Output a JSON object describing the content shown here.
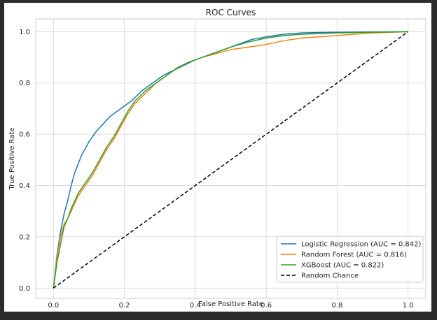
{
  "chart_data": {
    "type": "line",
    "title": "ROC Curves",
    "xlabel": "False Positive Rate",
    "ylabel": "True Positive Rate",
    "xlim": [
      -0.05,
      1.05
    ],
    "ylim": [
      -0.04,
      1.05
    ],
    "xticks": [
      0.0,
      0.2,
      0.4,
      0.6,
      0.8,
      1.0
    ],
    "yticks": [
      0.0,
      0.2,
      0.4,
      0.6,
      0.8,
      1.0
    ],
    "xtick_labels": [
      "0.0",
      "0.2",
      "0.4",
      "0.6",
      "0.8",
      "1.0"
    ],
    "ytick_labels": [
      "0.0",
      "0.2",
      "0.4",
      "0.6",
      "0.8",
      "1.0"
    ],
    "grid": true,
    "legend_position": "bottom-right",
    "series": [
      {
        "name": "Logistic Regression (AUC = 0.842)",
        "color": "#1f77b4",
        "style": "solid",
        "x": [
          0.0,
          0.01,
          0.02,
          0.03,
          0.04,
          0.05,
          0.06,
          0.08,
          0.1,
          0.12,
          0.14,
          0.16,
          0.18,
          0.2,
          0.22,
          0.25,
          0.28,
          0.31,
          0.34,
          0.37,
          0.4,
          0.44,
          0.48,
          0.52,
          0.56,
          0.6,
          0.65,
          0.7,
          0.75,
          0.8,
          0.9,
          1.0
        ],
        "y": [
          0.0,
          0.13,
          0.22,
          0.29,
          0.34,
          0.4,
          0.45,
          0.52,
          0.57,
          0.61,
          0.64,
          0.67,
          0.69,
          0.71,
          0.73,
          0.77,
          0.8,
          0.83,
          0.85,
          0.87,
          0.89,
          0.91,
          0.93,
          0.95,
          0.97,
          0.98,
          0.99,
          0.995,
          0.997,
          0.998,
          0.999,
          1.0
        ]
      },
      {
        "name": "Random Forest (AUC = 0.816)",
        "color": "#ff7f0e",
        "style": "solid",
        "x": [
          0.0,
          0.01,
          0.02,
          0.03,
          0.04,
          0.05,
          0.07,
          0.09,
          0.11,
          0.13,
          0.15,
          0.17,
          0.19,
          0.21,
          0.23,
          0.26,
          0.29,
          0.32,
          0.35,
          0.38,
          0.42,
          0.46,
          0.5,
          0.55,
          0.6,
          0.65,
          0.7,
          0.8,
          0.9,
          1.0
        ],
        "y": [
          0.0,
          0.12,
          0.2,
          0.25,
          0.27,
          0.3,
          0.36,
          0.4,
          0.44,
          0.49,
          0.54,
          0.58,
          0.63,
          0.68,
          0.72,
          0.76,
          0.8,
          0.83,
          0.86,
          0.88,
          0.9,
          0.915,
          0.93,
          0.94,
          0.95,
          0.965,
          0.975,
          0.985,
          0.995,
          1.0
        ]
      },
      {
        "name": "XGBoost (AUC = 0.822)",
        "color": "#2ca02c",
        "style": "solid",
        "x": [
          0.0,
          0.01,
          0.02,
          0.03,
          0.04,
          0.05,
          0.07,
          0.09,
          0.11,
          0.13,
          0.15,
          0.17,
          0.19,
          0.21,
          0.23,
          0.26,
          0.29,
          0.32,
          0.35,
          0.38,
          0.42,
          0.46,
          0.5,
          0.55,
          0.6,
          0.65,
          0.7,
          0.8,
          0.9,
          1.0
        ],
        "y": [
          0.0,
          0.1,
          0.17,
          0.24,
          0.27,
          0.31,
          0.37,
          0.41,
          0.45,
          0.5,
          0.55,
          0.59,
          0.64,
          0.69,
          0.73,
          0.77,
          0.8,
          0.83,
          0.86,
          0.88,
          0.9,
          0.92,
          0.94,
          0.96,
          0.975,
          0.985,
          0.99,
          0.995,
          0.998,
          1.0
        ]
      },
      {
        "name": "Random Chance",
        "color": "#000000",
        "style": "dashed",
        "x": [
          0.0,
          1.0
        ],
        "y": [
          0.0,
          1.0
        ]
      }
    ]
  }
}
